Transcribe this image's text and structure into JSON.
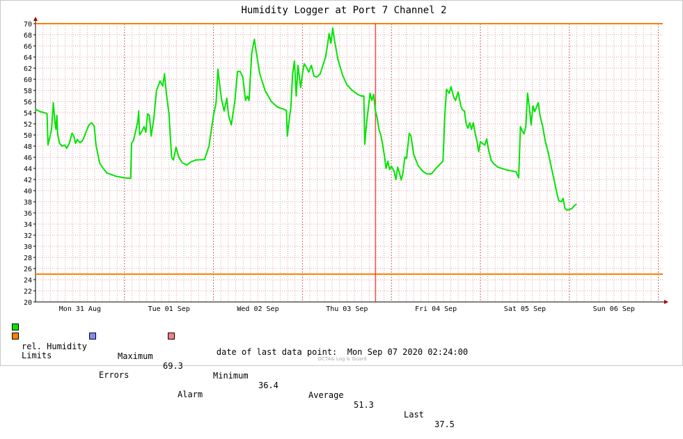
{
  "chart_data": {
    "type": "line",
    "title": "Humidity Logger at Port 7 Channel 2",
    "ylim": [
      20,
      70
    ],
    "y_ticks": [
      20,
      22,
      24,
      26,
      28,
      30,
      32,
      34,
      36,
      38,
      40,
      42,
      44,
      46,
      48,
      50,
      52,
      54,
      56,
      58,
      60,
      62,
      64,
      66,
      68,
      70
    ],
    "x_range_days": [
      0,
      7.05
    ],
    "x_tick_labels": [
      {
        "day": 0.5,
        "label": "Mon 31 Aug"
      },
      {
        "day": 1.5,
        "label": "Tue 01 Sep"
      },
      {
        "day": 2.5,
        "label": "Wed 02 Sep"
      },
      {
        "day": 3.5,
        "label": "Thu 03 Sep"
      },
      {
        "day": 4.5,
        "label": "Fri 04 Sep"
      },
      {
        "day": 5.5,
        "label": "Sat 05 Sep"
      },
      {
        "day": 6.5,
        "label": "Sun 06 Sep"
      }
    ],
    "limits": {
      "upper": 70,
      "lower": 25
    },
    "marker_day": 3.82,
    "grid": true,
    "colors": {
      "series": "#00e400",
      "limits": "#ff7f00",
      "errors": "#7f8cff",
      "alarm": "#ff7f7f",
      "marker": "#ff0000",
      "grid": "#e8a0a0"
    },
    "series": [
      {
        "name": "rel. Humidity",
        "points": [
          [
            0.0,
            54.6
          ],
          [
            0.05,
            54.2
          ],
          [
            0.1,
            54.0
          ],
          [
            0.13,
            53.8
          ],
          [
            0.14,
            48.2
          ],
          [
            0.16,
            49.5
          ],
          [
            0.18,
            51.0
          ],
          [
            0.2,
            55.8
          ],
          [
            0.22,
            52.0
          ],
          [
            0.23,
            51.0
          ],
          [
            0.24,
            53.5
          ],
          [
            0.25,
            50.0
          ],
          [
            0.27,
            48.5
          ],
          [
            0.3,
            48.0
          ],
          [
            0.33,
            48.2
          ],
          [
            0.35,
            47.6
          ],
          [
            0.38,
            48.5
          ],
          [
            0.41,
            50.3
          ],
          [
            0.43,
            49.8
          ],
          [
            0.45,
            48.5
          ],
          [
            0.47,
            49.2
          ],
          [
            0.5,
            48.6
          ],
          [
            0.53,
            49.0
          ],
          [
            0.57,
            50.6
          ],
          [
            0.6,
            51.8
          ],
          [
            0.63,
            52.2
          ],
          [
            0.66,
            51.6
          ],
          [
            0.68,
            48.2
          ],
          [
            0.69,
            47.4
          ],
          [
            0.72,
            45.0
          ],
          [
            0.75,
            44.2
          ],
          [
            0.8,
            43.2
          ],
          [
            0.9,
            42.6
          ],
          [
            1.0,
            42.3
          ],
          [
            1.07,
            42.2
          ],
          [
            1.08,
            48.5
          ],
          [
            1.1,
            49.0
          ],
          [
            1.13,
            51.0
          ],
          [
            1.15,
            52.5
          ],
          [
            1.16,
            54.3
          ],
          [
            1.17,
            50.0
          ],
          [
            1.19,
            50.5
          ],
          [
            1.22,
            51.5
          ],
          [
            1.24,
            50.5
          ],
          [
            1.26,
            53.8
          ],
          [
            1.28,
            53.5
          ],
          [
            1.3,
            49.8
          ],
          [
            1.33,
            53.0
          ],
          [
            1.36,
            58.0
          ],
          [
            1.4,
            59.7
          ],
          [
            1.43,
            58.8
          ],
          [
            1.45,
            61.0
          ],
          [
            1.47,
            57.5
          ],
          [
            1.5,
            53.8
          ],
          [
            1.53,
            46.0
          ],
          [
            1.55,
            45.5
          ],
          [
            1.58,
            47.8
          ],
          [
            1.61,
            46.0
          ],
          [
            1.65,
            45.0
          ],
          [
            1.7,
            44.6
          ],
          [
            1.75,
            45.2
          ],
          [
            1.8,
            45.5
          ],
          [
            1.9,
            45.6
          ],
          [
            1.95,
            48.0
          ],
          [
            2.0,
            53.5
          ],
          [
            2.03,
            55.8
          ],
          [
            2.05,
            61.8
          ],
          [
            2.07,
            59.0
          ],
          [
            2.09,
            56.5
          ],
          [
            2.12,
            54.3
          ],
          [
            2.15,
            56.6
          ],
          [
            2.17,
            53.5
          ],
          [
            2.2,
            51.8
          ],
          [
            2.24,
            56.0
          ],
          [
            2.27,
            61.4
          ],
          [
            2.3,
            61.4
          ],
          [
            2.33,
            60.4
          ],
          [
            2.36,
            56.2
          ],
          [
            2.38,
            57.0
          ],
          [
            2.4,
            56.2
          ],
          [
            2.43,
            64.8
          ],
          [
            2.46,
            67.2
          ],
          [
            2.48,
            65.0
          ],
          [
            2.52,
            61.0
          ],
          [
            2.58,
            58.0
          ],
          [
            2.65,
            56.0
          ],
          [
            2.72,
            55.0
          ],
          [
            2.78,
            54.7
          ],
          [
            2.82,
            54.4
          ],
          [
            2.83,
            49.8
          ],
          [
            2.85,
            52.5
          ],
          [
            2.87,
            55.0
          ],
          [
            2.89,
            61.0
          ],
          [
            2.91,
            63.3
          ],
          [
            2.93,
            57.0
          ],
          [
            2.95,
            62.5
          ],
          [
            2.98,
            58.5
          ],
          [
            3.0,
            61.0
          ],
          [
            3.02,
            62.8
          ],
          [
            3.05,
            62.0
          ],
          [
            3.07,
            61.3
          ],
          [
            3.1,
            62.5
          ],
          [
            3.13,
            60.6
          ],
          [
            3.16,
            60.4
          ],
          [
            3.2,
            61.0
          ],
          [
            3.23,
            62.5
          ],
          [
            3.26,
            64.0
          ],
          [
            3.28,
            66.0
          ],
          [
            3.3,
            68.2
          ],
          [
            3.32,
            66.5
          ],
          [
            3.34,
            69.2
          ],
          [
            3.36,
            67.0
          ],
          [
            3.4,
            63.5
          ],
          [
            3.45,
            60.8
          ],
          [
            3.5,
            59.0
          ],
          [
            3.56,
            58.0
          ],
          [
            3.62,
            57.3
          ],
          [
            3.66,
            57.0
          ],
          [
            3.69,
            57.0
          ],
          [
            3.7,
            48.3
          ],
          [
            3.72,
            52.0
          ],
          [
            3.74,
            54.8
          ],
          [
            3.76,
            57.5
          ],
          [
            3.78,
            56.2
          ],
          [
            3.8,
            57.3
          ],
          [
            3.82,
            54.3
          ],
          [
            3.84,
            53.0
          ],
          [
            3.86,
            51.0
          ],
          [
            3.88,
            50.0
          ],
          [
            3.9,
            48.4
          ],
          [
            3.92,
            46.4
          ],
          [
            3.94,
            44.0
          ],
          [
            3.96,
            45.3
          ],
          [
            3.98,
            43.8
          ],
          [
            4.0,
            44.4
          ],
          [
            4.03,
            43.5
          ],
          [
            4.05,
            42.0
          ],
          [
            4.07,
            44.2
          ],
          [
            4.09,
            43.2
          ],
          [
            4.11,
            41.9
          ],
          [
            4.13,
            43.2
          ],
          [
            4.15,
            46.0
          ],
          [
            4.17,
            45.8
          ],
          [
            4.2,
            50.3
          ],
          [
            4.22,
            49.8
          ],
          [
            4.25,
            46.5
          ],
          [
            4.3,
            44.5
          ],
          [
            4.35,
            43.5
          ],
          [
            4.4,
            43.0
          ],
          [
            4.45,
            43.0
          ],
          [
            4.5,
            44.0
          ],
          [
            4.55,
            44.8
          ],
          [
            4.58,
            45.3
          ],
          [
            4.6,
            53.5
          ],
          [
            4.62,
            58.2
          ],
          [
            4.65,
            57.5
          ],
          [
            4.67,
            58.7
          ],
          [
            4.7,
            56.8
          ],
          [
            4.72,
            56.2
          ],
          [
            4.75,
            57.7
          ],
          [
            4.78,
            55.2
          ],
          [
            4.8,
            54.5
          ],
          [
            4.82,
            54.3
          ],
          [
            4.84,
            52.0
          ],
          [
            4.86,
            51.2
          ],
          [
            4.88,
            52.2
          ],
          [
            4.9,
            51.0
          ],
          [
            4.92,
            52.2
          ],
          [
            4.94,
            50.4
          ],
          [
            4.96,
            49.0
          ],
          [
            4.98,
            47.0
          ],
          [
            5.0,
            48.8
          ],
          [
            5.02,
            48.5
          ],
          [
            5.05,
            48.2
          ],
          [
            5.07,
            49.3
          ],
          [
            5.09,
            47.5
          ],
          [
            5.12,
            45.5
          ],
          [
            5.15,
            44.8
          ],
          [
            5.2,
            44.2
          ],
          [
            5.3,
            43.7
          ],
          [
            5.4,
            43.4
          ],
          [
            5.43,
            42.3
          ],
          [
            5.45,
            51.5
          ],
          [
            5.47,
            50.7
          ],
          [
            5.49,
            50.2
          ],
          [
            5.51,
            51.5
          ],
          [
            5.53,
            57.5
          ],
          [
            5.55,
            55.0
          ],
          [
            5.57,
            51.8
          ],
          [
            5.59,
            55.2
          ],
          [
            5.61,
            54.2
          ],
          [
            5.63,
            55.0
          ],
          [
            5.65,
            55.8
          ],
          [
            5.67,
            53.5
          ],
          [
            5.7,
            51.5
          ],
          [
            5.73,
            48.8
          ],
          [
            5.76,
            47.0
          ],
          [
            5.8,
            44.0
          ],
          [
            5.83,
            41.8
          ],
          [
            5.86,
            39.5
          ],
          [
            5.88,
            38.2
          ],
          [
            5.91,
            38.0
          ],
          [
            5.93,
            38.6
          ],
          [
            5.95,
            36.8
          ],
          [
            5.97,
            36.5
          ],
          [
            6.0,
            36.6
          ],
          [
            6.03,
            36.8
          ],
          [
            6.05,
            37.2
          ],
          [
            6.08,
            37.6
          ]
        ]
      }
    ]
  },
  "legend": {
    "humidity_label": "rel. Humidity",
    "limits_label": "Limits",
    "errors_label": "Errors",
    "alarm_label": "Alarm",
    "maximum_label": "Maximum",
    "maximum_value": "69.3",
    "minimum_label": "Minimum",
    "minimum_value": "36.4",
    "average_label": "Average",
    "average_value": "51.3",
    "last_label": "Last",
    "last_value": "37.5"
  },
  "footer": {
    "last_point_text": "date of last data point:  Mon Sep 07 2020 02:24:00",
    "credit": "OCTA& Log & Guard"
  }
}
